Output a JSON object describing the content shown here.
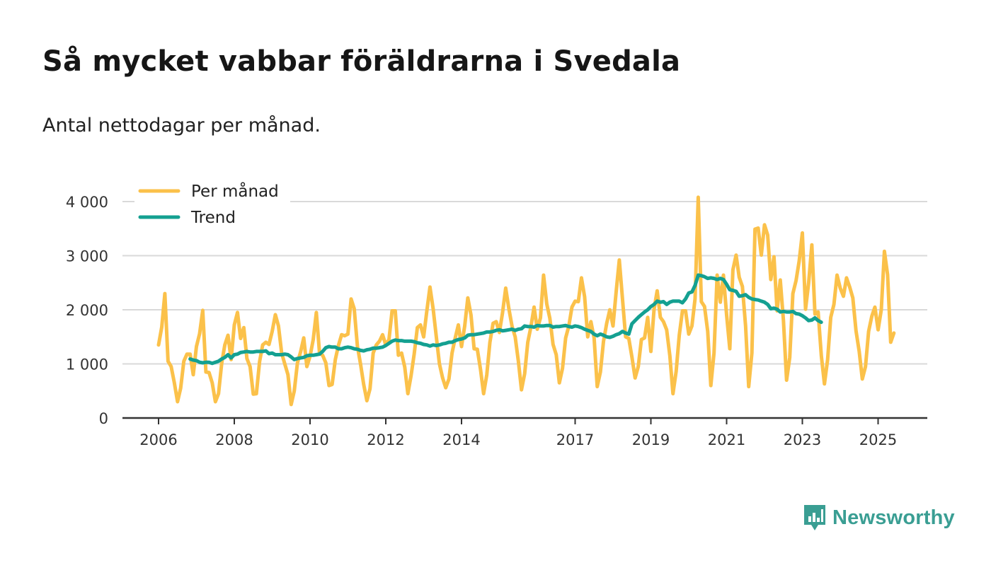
{
  "chart_data": {
    "type": "line",
    "title": "Så mycket vabbar föräldrarna i Svedala",
    "subtitle": "Antal nettodagar per månad.",
    "xlabel": "",
    "ylabel": "",
    "ylim": [
      0,
      4000
    ],
    "y_ticks": [
      {
        "value": 0,
        "label": "0"
      },
      {
        "value": 1000,
        "label": "1 000"
      },
      {
        "value": 2000,
        "label": "2 000"
      },
      {
        "value": 3000,
        "label": "3 000"
      },
      {
        "value": 4000,
        "label": "4 000"
      }
    ],
    "x_range": [
      2006,
      2026.5
    ],
    "x_ticks": [
      {
        "value": 2006,
        "label": "2006"
      },
      {
        "value": 2008,
        "label": "2008"
      },
      {
        "value": 2010,
        "label": "2010"
      },
      {
        "value": 2012,
        "label": "2012"
      },
      {
        "value": 2014,
        "label": "2014"
      },
      {
        "value": 2017,
        "label": "2017"
      },
      {
        "value": 2019,
        "label": "2019"
      },
      {
        "value": 2021,
        "label": "2021"
      },
      {
        "value": 2023,
        "label": "2023"
      },
      {
        "value": 2025,
        "label": "2025"
      }
    ],
    "grid": true,
    "legend_position": "top-left",
    "series": [
      {
        "name": "Per månad",
        "color": "#fbc14a",
        "start": 2006.0,
        "step_months": 1,
        "values": [
          1350,
          1680,
          2300,
          1050,
          950,
          650,
          300,
          550,
          1050,
          1180,
          1180,
          800,
          1320,
          1560,
          1990,
          850,
          840,
          650,
          300,
          450,
          1010,
          1350,
          1530,
          1080,
          1720,
          1950,
          1470,
          1670,
          1100,
          950,
          440,
          450,
          1040,
          1350,
          1400,
          1360,
          1600,
          1910,
          1700,
          1200,
          1000,
          800,
          250,
          500,
          1020,
          1220,
          1480,
          950,
          1140,
          1450,
          1950,
          1200,
          1160,
          1020,
          600,
          620,
          1080,
          1340,
          1540,
          1520,
          1550,
          2200,
          2020,
          1330,
          1000,
          620,
          320,
          540,
          1200,
          1350,
          1420,
          1540,
          1350,
          1450,
          1980,
          1980,
          1160,
          1200,
          940,
          450,
          780,
          1180,
          1670,
          1720,
          1500,
          1980,
          2420,
          2020,
          1510,
          1000,
          740,
          560,
          720,
          1200,
          1480,
          1720,
          1320,
          1700,
          2220,
          1900,
          1280,
          1270,
          900,
          450,
          800,
          1400,
          1750,
          1780,
          1580,
          1950,
          2400,
          2020,
          1700,
          1500,
          1050,
          520,
          820,
          1400,
          1690,
          2050,
          1640,
          1850,
          2640,
          2110,
          1840,
          1360,
          1170,
          650,
          920,
          1480,
          1700,
          2050,
          2160,
          2150,
          2590,
          2240,
          1500,
          1780,
          1480,
          580,
          850,
          1420,
          1750,
          2000,
          1700,
          2340,
          2920,
          2200,
          1500,
          1470,
          1120,
          740,
          950,
          1450,
          1480,
          1860,
          1230,
          2010,
          2350,
          1860,
          1780,
          1630,
          1150,
          450,
          860,
          1530,
          1980,
          1980,
          1550,
          1700,
          2200,
          4080,
          2150,
          2060,
          1600,
          600,
          1200,
          2640,
          2140,
          2640,
          1900,
          1280,
          2740,
          3010,
          2600,
          2430,
          1700,
          580,
          1200,
          3490,
          3510,
          3010,
          3570,
          3380,
          2560,
          2980,
          1980,
          2550,
          1800,
          700,
          1120,
          2300,
          2540,
          2900,
          3420,
          2010,
          2500,
          3200,
          1920,
          1960,
          1150,
          630,
          1080,
          1860,
          2100,
          2640,
          2400,
          2250,
          2590,
          2420,
          2220,
          1610,
          1230,
          720,
          950,
          1600,
          1880,
          2050,
          1630,
          2000,
          3080,
          2650,
          1400,
          1570
        ]
      },
      {
        "name": "Trend",
        "color": "#14a091",
        "start": 2006.8333,
        "step_months": 1,
        "values": [
          1090,
          1070,
          1060,
          1030,
          1020,
          1030,
          1030,
          1010,
          1030,
          1050,
          1090,
          1120,
          1170,
          1110,
          1170,
          1180,
          1210,
          1220,
          1230,
          1220,
          1220,
          1230,
          1230,
          1230,
          1240,
          1190,
          1200,
          1170,
          1170,
          1170,
          1180,
          1170,
          1130,
          1080,
          1100,
          1110,
          1120,
          1150,
          1160,
          1160,
          1170,
          1180,
          1230,
          1300,
          1320,
          1310,
          1310,
          1280,
          1280,
          1300,
          1310,
          1300,
          1280,
          1270,
          1250,
          1240,
          1260,
          1270,
          1290,
          1290,
          1300,
          1310,
          1340,
          1380,
          1420,
          1440,
          1430,
          1430,
          1420,
          1420,
          1420,
          1410,
          1390,
          1380,
          1360,
          1350,
          1330,
          1350,
          1340,
          1350,
          1370,
          1380,
          1400,
          1400,
          1430,
          1450,
          1460,
          1480,
          1530,
          1540,
          1540,
          1550,
          1560,
          1570,
          1590,
          1590,
          1600,
          1620,
          1630,
          1610,
          1620,
          1630,
          1640,
          1620,
          1640,
          1650,
          1700,
          1690,
          1690,
          1680,
          1710,
          1700,
          1700,
          1710,
          1710,
          1680,
          1690,
          1690,
          1700,
          1710,
          1690,
          1680,
          1700,
          1690,
          1670,
          1640,
          1620,
          1600,
          1550,
          1520,
          1550,
          1530,
          1500,
          1490,
          1510,
          1540,
          1560,
          1600,
          1570,
          1550,
          1740,
          1800,
          1860,
          1910,
          1960,
          2000,
          2060,
          2100,
          2160,
          2140,
          2150,
          2100,
          2140,
          2160,
          2160,
          2160,
          2130,
          2200,
          2310,
          2330,
          2450,
          2640,
          2630,
          2610,
          2580,
          2590,
          2580,
          2560,
          2580,
          2560,
          2470,
          2370,
          2360,
          2340,
          2250,
          2260,
          2280,
          2230,
          2200,
          2190,
          2180,
          2160,
          2140,
          2100,
          2020,
          2030,
          2010,
          1960,
          1970,
          1960,
          1960,
          1970,
          1930,
          1920,
          1890,
          1850,
          1800,
          1810,
          1850,
          1800,
          1770
        ]
      }
    ]
  },
  "brand": {
    "name": "Newsworthy",
    "logo_icon": "newsworthy-logo-icon",
    "color": "#3a9e93"
  }
}
